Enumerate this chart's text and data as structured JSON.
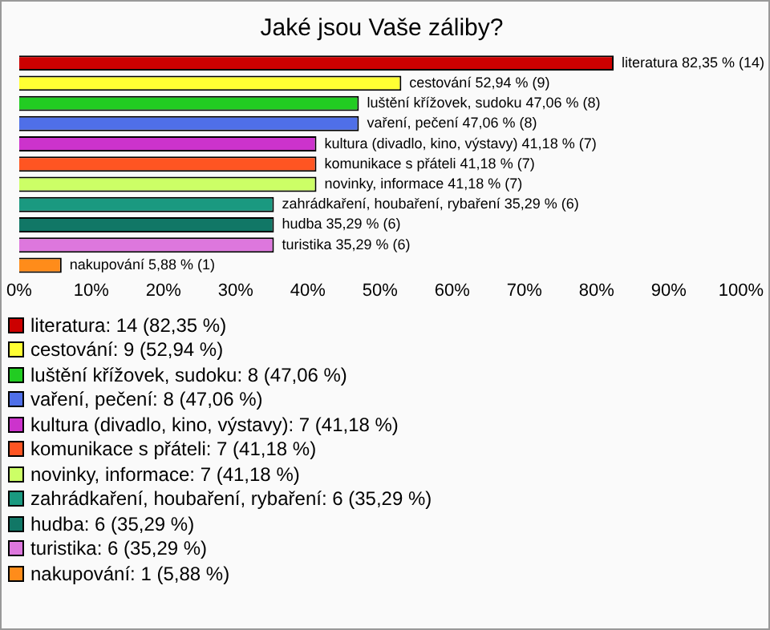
{
  "chart_data": {
    "type": "bar",
    "orientation": "horizontal",
    "title": "Jaké jsou Vaše záliby?",
    "categories": [
      "literatura",
      "cestování",
      "luštění křížovek, sudoku",
      "vaření, pečení",
      "kultura (divadlo, kino, výstavy)",
      "komunikace s přáteli",
      "novinky, informace",
      "zahrádkaření, houbaření, rybaření",
      "hudba",
      "turistika",
      "nakupování"
    ],
    "values": [
      82.35,
      52.94,
      47.06,
      47.06,
      41.18,
      41.18,
      41.18,
      35.29,
      35.29,
      35.29,
      5.88
    ],
    "colors": [
      "#cc0000",
      "#ffff33",
      "#22cc22",
      "#4f6fe8",
      "#cc33cc",
      "#ff5522",
      "#ccff66",
      "#1a9980",
      "#117766",
      "#dd77dd",
      "#ff8c1a"
    ],
    "value_labels": [
      "82,35 % (14)",
      "52,94 % (9)",
      "47,06 % (8)",
      "47,06 % (8)",
      "41,18 % (7)",
      "41,18 % (7)",
      "41,18 % (7)",
      "35,29 % (6)",
      "35,29 % (6)",
      "35,29 % (6)",
      "5,88 % (1)"
    ],
    "xlim": [
      0,
      100
    ],
    "xticks": [
      {
        "value": 0,
        "label": "0%"
      },
      {
        "value": 10,
        "label": "10%"
      },
      {
        "value": 20,
        "label": "20%"
      },
      {
        "value": 30,
        "label": "30%"
      },
      {
        "value": 40,
        "label": "40%"
      },
      {
        "value": 50,
        "label": "50%"
      },
      {
        "value": 60,
        "label": "60%"
      },
      {
        "value": 70,
        "label": "70%"
      },
      {
        "value": 80,
        "label": "80%"
      },
      {
        "value": 90,
        "label": "90%"
      },
      {
        "value": 100,
        "label": "100%"
      }
    ],
    "tick_labels": "x",
    "grid": false,
    "annotations": [
      "literatura: 14 (82,35 %)",
      "cestování: 9 (52,94 %)",
      "luštění křížovek, sudoku: 8 (47,06 %)",
      "vaření, pečení: 8 (47,06 %)",
      "kultura (divadlo, kino, výstavy): 7 (41,18 %)",
      "komunikace s přáteli: 7 (41,18 %)",
      "novinky, informace: 7 (41,18 %)",
      "zahrádkaření, houbaření, rybaření: 6 (35,29 %)",
      "hudba: 6 (35,29 %)",
      "turistika: 6 (35,29 %)",
      "nakupování: 1 (5,88 %)"
    ]
  }
}
